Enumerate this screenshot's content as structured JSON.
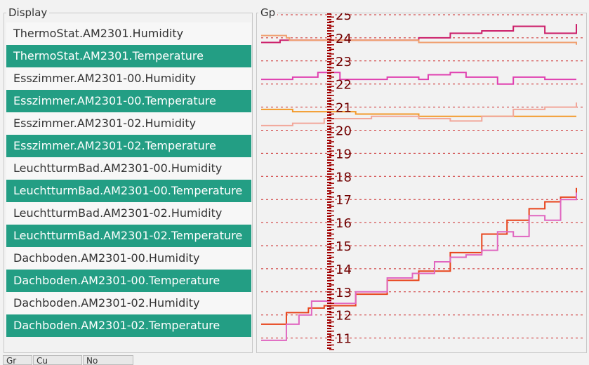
{
  "display": {
    "title": "Display",
    "items": [
      {
        "label": "ThermoStat.AM2301.Humidity",
        "selected": false
      },
      {
        "label": "ThermoStat.AM2301.Temperature",
        "selected": true
      },
      {
        "label": "Esszimmer.AM2301-00.Humidity",
        "selected": false
      },
      {
        "label": "Esszimmer.AM2301-00.Temperature",
        "selected": true
      },
      {
        "label": "Esszimmer.AM2301-02.Humidity",
        "selected": false
      },
      {
        "label": "Esszimmer.AM2301-02.Temperature",
        "selected": true
      },
      {
        "label": "LeuchtturmBad.AM2301-00.Humidity",
        "selected": false
      },
      {
        "label": "LeuchtturmBad.AM2301-00.Temperature",
        "selected": true
      },
      {
        "label": "LeuchtturmBad.AM2301-02.Humidity",
        "selected": false
      },
      {
        "label": "LeuchtturmBad.AM2301-02.Temperature",
        "selected": true
      },
      {
        "label": "Dachboden.AM2301-00.Humidity",
        "selected": false
      },
      {
        "label": "Dachboden.AM2301-00.Temperature",
        "selected": true
      },
      {
        "label": "Dachboden.AM2301-02.Humidity",
        "selected": false
      },
      {
        "label": "Dachboden.AM2301-02.Temperature",
        "selected": true
      }
    ],
    "selected_color": "#239e84"
  },
  "graph": {
    "title": "Gp"
  },
  "tabs": [
    {
      "label": "Gr"
    },
    {
      "label": "Cu"
    },
    {
      "label": "No"
    }
  ],
  "chart_data": {
    "type": "line",
    "ylim": [
      10.5,
      25
    ],
    "yticks": [
      11,
      12,
      13,
      14,
      15,
      16,
      17,
      18,
      19,
      20,
      21,
      22,
      23,
      24,
      25
    ],
    "grid": true,
    "axis_color": "#a00000",
    "series": [
      {
        "color": "#cc1f6a",
        "x": [
          0,
          3,
          6,
          9,
          10,
          30,
          50,
          60,
          70,
          80,
          90,
          100
        ],
        "y": [
          23.8,
          23.8,
          23.9,
          23.9,
          23.9,
          23.9,
          24.0,
          24.2,
          24.3,
          24.5,
          24.2,
          24.6
        ]
      },
      {
        "color": "#f0a070",
        "x": [
          0,
          5,
          8,
          9,
          30,
          50,
          70,
          90,
          100
        ],
        "y": [
          24.1,
          24.1,
          24.0,
          23.9,
          23.9,
          23.8,
          23.8,
          23.8,
          23.7
        ]
      },
      {
        "color": "#e040b0",
        "x": [
          0,
          10,
          18,
          25,
          40,
          50,
          53,
          60,
          65,
          75,
          80,
          90,
          100
        ],
        "y": [
          22.2,
          22.3,
          22.5,
          22.2,
          22.3,
          22.2,
          22.4,
          22.5,
          22.3,
          22.0,
          22.3,
          22.2,
          22.2
        ]
      },
      {
        "color": "#f39a2a",
        "x": [
          0,
          5,
          10,
          30,
          50,
          70,
          90,
          100
        ],
        "y": [
          20.9,
          20.9,
          20.8,
          20.7,
          20.6,
          20.6,
          20.6,
          20.6
        ]
      },
      {
        "color": "#f2a79a",
        "x": [
          0,
          10,
          20,
          35,
          50,
          60,
          70,
          80,
          90,
          100
        ],
        "y": [
          20.2,
          20.3,
          20.5,
          20.6,
          20.5,
          20.4,
          20.6,
          20.9,
          21.0,
          21.2
        ]
      },
      {
        "color": "#e8431a",
        "x": [
          0,
          8,
          15,
          20,
          30,
          40,
          50,
          60,
          70,
          78,
          85,
          90,
          95,
          100
        ],
        "y": [
          11.6,
          12.1,
          12.3,
          12.4,
          12.9,
          13.5,
          13.9,
          14.7,
          15.5,
          16.1,
          16.6,
          16.9,
          17.1,
          17.5
        ]
      },
      {
        "color": "#e066c0",
        "x": [
          0,
          8,
          12,
          16,
          22,
          30,
          40,
          48,
          55,
          60,
          65,
          70,
          75,
          80,
          85,
          90,
          95,
          100
        ],
        "y": [
          10.9,
          11.6,
          12.0,
          12.6,
          12.5,
          13.0,
          13.6,
          13.8,
          14.3,
          14.5,
          14.6,
          14.8,
          15.6,
          15.4,
          16.3,
          16.1,
          17.0,
          17.3
        ]
      }
    ]
  }
}
